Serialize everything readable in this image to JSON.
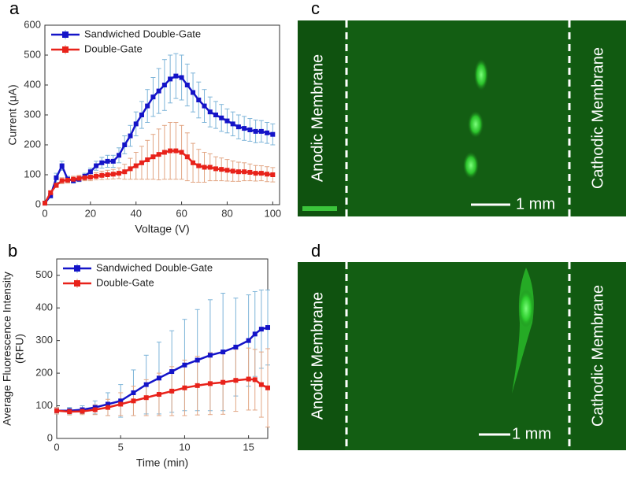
{
  "chart_data": [
    {
      "type": "line",
      "panel_label": "a",
      "x_label": "Voltage (V)",
      "y_label": [
        "Current (μA)"
      ],
      "x": [
        0,
        2.5,
        5,
        7.5,
        10,
        12.5,
        15,
        17.5,
        20,
        22.5,
        25,
        27.5,
        30,
        32.5,
        35,
        37.5,
        40,
        42.5,
        45,
        47.5,
        50,
        52.5,
        55,
        57.5,
        60,
        62.5,
        65,
        67.5,
        70,
        72.5,
        75,
        77.5,
        80,
        82.5,
        85,
        87.5,
        90,
        92.5,
        95,
        97.5,
        100
      ],
      "series": [
        {
          "name": "Sandwiched Double-Gate",
          "color": "#1414c8",
          "error_color": "#7db4d8",
          "values": [
            5,
            30,
            90,
            130,
            85,
            80,
            85,
            95,
            110,
            130,
            140,
            145,
            145,
            165,
            200,
            230,
            270,
            300,
            330,
            360,
            380,
            400,
            420,
            430,
            425,
            400,
            375,
            350,
            330,
            310,
            300,
            290,
            280,
            270,
            260,
            255,
            250,
            245,
            245,
            240,
            235
          ],
          "errors": [
            3,
            8,
            15,
            15,
            10,
            8,
            8,
            10,
            12,
            15,
            18,
            20,
            20,
            25,
            30,
            35,
            40,
            45,
            55,
            65,
            75,
            85,
            80,
            75,
            75,
            70,
            65,
            60,
            55,
            50,
            45,
            45,
            40,
            40,
            40,
            40,
            38,
            38,
            36,
            35,
            35
          ]
        },
        {
          "name": "Double-Gate",
          "color": "#e8221a",
          "error_color": "#e2a684",
          "values": [
            5,
            40,
            65,
            80,
            82,
            85,
            88,
            90,
            92,
            95,
            98,
            100,
            102,
            105,
            110,
            120,
            130,
            140,
            150,
            160,
            168,
            175,
            180,
            180,
            175,
            160,
            140,
            130,
            125,
            125,
            120,
            118,
            115,
            112,
            110,
            110,
            108,
            105,
            105,
            102,
            100
          ],
          "errors": [
            2,
            5,
            8,
            10,
            10,
            10,
            10,
            10,
            12,
            12,
            14,
            15,
            16,
            18,
            25,
            35,
            45,
            55,
            65,
            75,
            85,
            90,
            95,
            95,
            90,
            80,
            65,
            55,
            50,
            45,
            40,
            38,
            36,
            34,
            32,
            30,
            28,
            26,
            25,
            25,
            24
          ]
        }
      ],
      "xlim": [
        0,
        103
      ],
      "xticks": [
        0,
        20,
        40,
        60,
        80,
        100
      ],
      "ylim": [
        0,
        600
      ],
      "yticks": [
        0,
        100,
        200,
        300,
        400,
        500,
        600
      ],
      "legend": "upper left"
    },
    {
      "type": "line",
      "panel_label": "b",
      "x_label": "Time (min)",
      "y_label": [
        "Average Fluorescence Intensity",
        "(RFU)"
      ],
      "x": [
        0,
        1,
        2,
        3,
        4,
        5,
        6,
        7,
        8,
        9,
        10,
        11,
        12,
        13,
        14,
        15,
        15.5,
        16,
        16.5
      ],
      "series": [
        {
          "name": "Sandwiched Double-Gate",
          "color": "#1414c8",
          "error_color": "#7db4d8",
          "values": [
            85,
            85,
            88,
            95,
            105,
            115,
            140,
            165,
            185,
            205,
            225,
            240,
            255,
            265,
            280,
            300,
            320,
            335,
            340
          ],
          "errors": [
            10,
            10,
            12,
            20,
            35,
            50,
            70,
            90,
            110,
            125,
            140,
            155,
            170,
            180,
            150,
            140,
            130,
            120,
            115
          ]
        },
        {
          "name": "Double-Gate",
          "color": "#e8221a",
          "error_color": "#e2a684",
          "values": [
            85,
            82,
            83,
            88,
            95,
            105,
            115,
            125,
            135,
            145,
            155,
            162,
            168,
            172,
            178,
            182,
            180,
            165,
            155
          ],
          "errors": [
            10,
            10,
            10,
            15,
            25,
            35,
            45,
            55,
            65,
            75,
            85,
            90,
            95,
            98,
            95,
            95,
            93,
            100,
            120
          ]
        }
      ],
      "xlim": [
        0,
        16.5
      ],
      "xticks": [
        0,
        5,
        10,
        15
      ],
      "ylim": [
        0,
        550
      ],
      "yticks": [
        0,
        100,
        200,
        300,
        400,
        500
      ],
      "legend": "upper left"
    }
  ],
  "images": [
    {
      "label": "c",
      "left_text": "Anodic Membrane",
      "right_text": "Cathodic Membrane",
      "scale_bar": "1 mm"
    },
    {
      "label": "d",
      "left_text": "Anodic Membrane",
      "right_text": "Cathodic Membrane",
      "scale_bar": "1 mm"
    }
  ]
}
